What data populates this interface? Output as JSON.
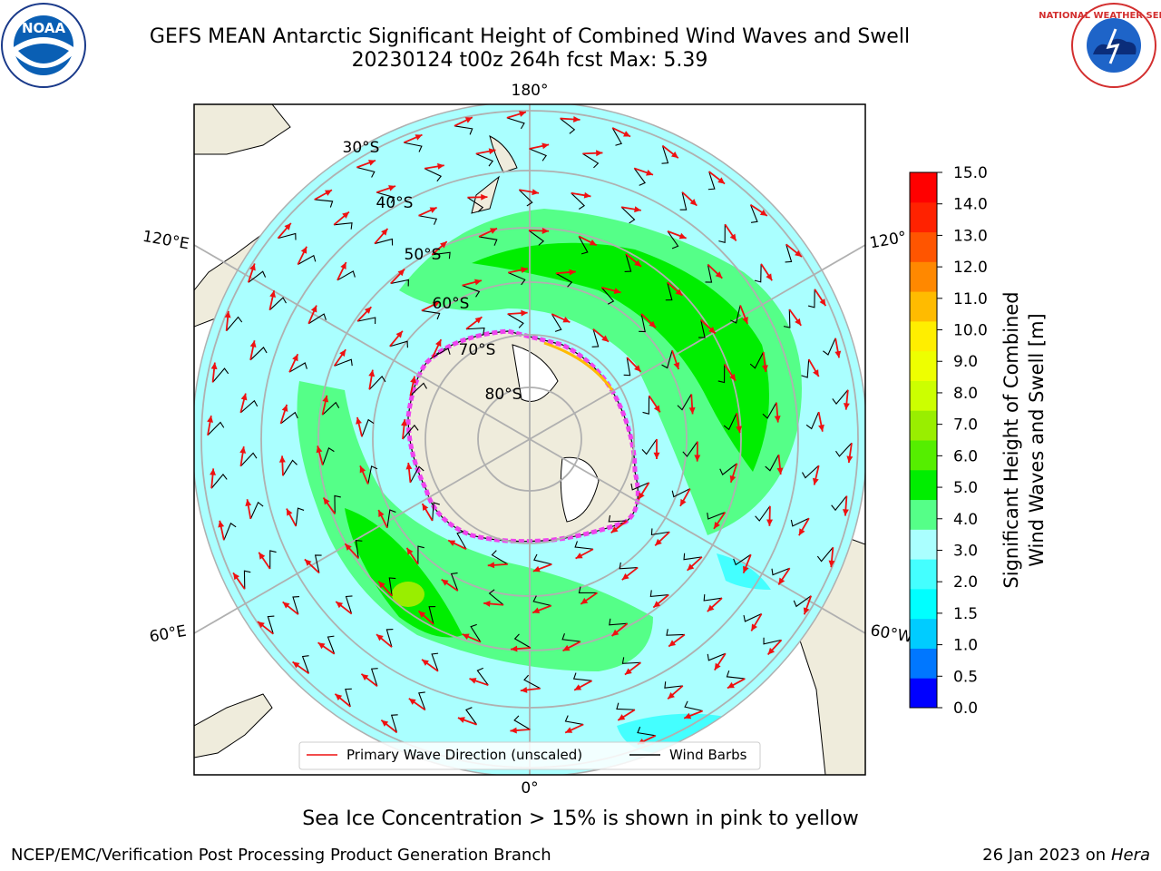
{
  "header": {
    "title": "GEFS MEAN Antarctic Significant Height of Combined Wind Waves and Swell",
    "subtitle": "20230124 t00z 264h fcst   Max: 5.39"
  },
  "logos": {
    "left": "NOAA",
    "right": "NATIONAL WEATHER SERVICE"
  },
  "map": {
    "longitude_labels": [
      "180°",
      "120°E",
      "120°",
      "60°E",
      "60°W",
      "0°"
    ],
    "latitude_labels": [
      "30°S",
      "40°S",
      "50°S",
      "60°S",
      "70°S",
      "80°S"
    ]
  },
  "legend": {
    "primary_wave": "Primary Wave Direction (unscaled)",
    "wind_barbs": "Wind Barbs"
  },
  "chart_data": {
    "type": "heatmap",
    "title": "GEFS MEAN Antarctic Significant Height of Combined Wind Waves and Swell",
    "subtitle": "20230124 t00z 264h fcst   Max: 5.39",
    "max_value": 5.39,
    "colorbar": {
      "label": "Significant Height of Combined Wind Waves and Swell [m]",
      "label_lines": [
        "Significant Height of Combined",
        "Wind Waves and Swell [m]"
      ],
      "ticks": [
        "0.0",
        "0.5",
        "1.0",
        "1.5",
        "2.0",
        "3.0",
        "4.0",
        "5.0",
        "6.0",
        "7.0",
        "8.0",
        "9.0",
        "10.0",
        "11.0",
        "12.0",
        "13.0",
        "14.0",
        "15.0"
      ],
      "colors": [
        "#0000ff",
        "#0077ff",
        "#00ccff",
        "#00ffff",
        "#44ffff",
        "#aaffff",
        "#55ff88",
        "#00ee00",
        "#55ee00",
        "#99ee00",
        "#ccff00",
        "#eeff00",
        "#ffee00",
        "#ffbb00",
        "#ff8800",
        "#ff5500",
        "#ff2200",
        "#ff0000"
      ]
    },
    "note": "Sea Ice Concentration > 15% is shown in pink to yellow"
  },
  "footer": {
    "credit": "NCEP/EMC/Verification Post Processing Product Generation Branch",
    "date": "26 Jan 2023 on",
    "machine": "Hera"
  }
}
